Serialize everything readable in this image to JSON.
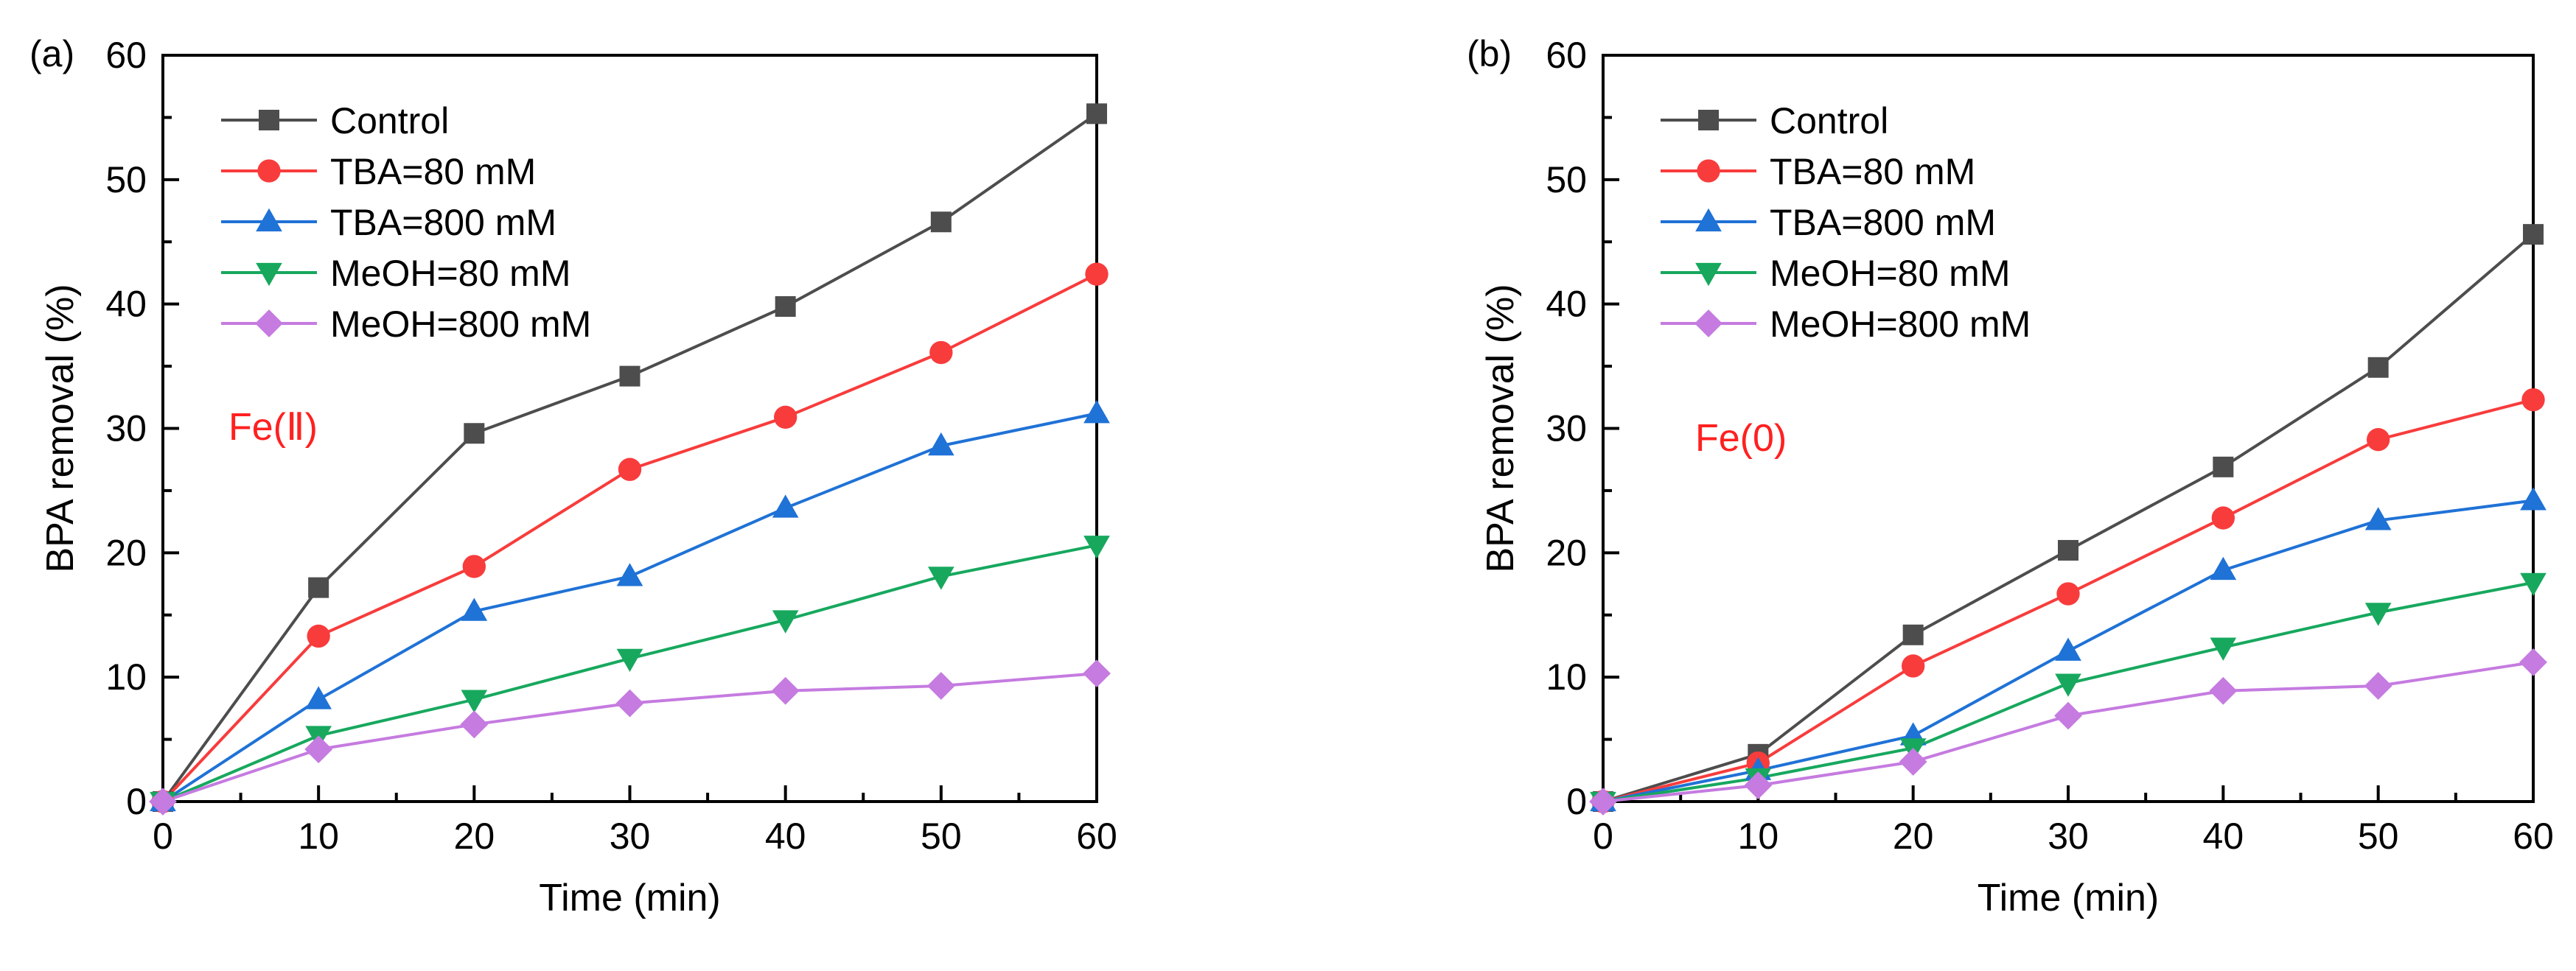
{
  "chart_data": [
    {
      "panel_label": "(a)",
      "type": "line",
      "xlabel": "Time (min)",
      "ylabel": "BPA removal (%)",
      "xlim": [
        0,
        60
      ],
      "ylim": [
        0,
        60
      ],
      "xticks": [
        "0",
        "10",
        "20",
        "30",
        "40",
        "50",
        "60"
      ],
      "yticks": [
        "0",
        "10",
        "20",
        "30",
        "40",
        "50",
        "60"
      ],
      "annotation": "Fe(Ⅱ)",
      "annotation_color": "#ff2020",
      "legend_position": "top-left",
      "x": [
        0,
        10,
        20,
        30,
        40,
        50,
        60
      ],
      "series": [
        {
          "name": "Control",
          "color": "#4d4d4d",
          "marker": "square",
          "values": [
            0,
            17.2,
            29.6,
            34.2,
            39.8,
            46.6,
            55.3
          ]
        },
        {
          "name": "TBA=80 mM",
          "color": "#f83c3c",
          "marker": "circle",
          "values": [
            0,
            13.3,
            18.9,
            26.7,
            30.9,
            36.1,
            42.4
          ]
        },
        {
          "name": "TBA=800 mM",
          "color": "#1f72d6",
          "marker": "triangle-up",
          "values": [
            0,
            8.2,
            15.3,
            18.1,
            23.6,
            28.6,
            31.2
          ]
        },
        {
          "name": "MeOH=80 mM",
          "color": "#17a85e",
          "marker": "triangle-down",
          "values": [
            0,
            5.3,
            8.2,
            11.5,
            14.6,
            18.1,
            20.6
          ]
        },
        {
          "name": "MeOH=800 mM",
          "color": "#c57be0",
          "marker": "diamond",
          "values": [
            0,
            4.2,
            6.2,
            7.9,
            8.9,
            9.3,
            10.3
          ]
        }
      ]
    },
    {
      "panel_label": "(b)",
      "type": "line",
      "xlabel": "Time (min)",
      "ylabel": "BPA removal (%)",
      "xlim": [
        0,
        60
      ],
      "ylim": [
        0,
        60
      ],
      "xticks": [
        "0",
        "10",
        "20",
        "30",
        "40",
        "50",
        "60"
      ],
      "yticks": [
        "0",
        "10",
        "20",
        "30",
        "40",
        "50",
        "60"
      ],
      "annotation": "Fe(0)",
      "annotation_color": "#ff2020",
      "legend_position": "top-left",
      "x": [
        0,
        10,
        20,
        30,
        40,
        50,
        60
      ],
      "series": [
        {
          "name": "Control",
          "color": "#4d4d4d",
          "marker": "square",
          "values": [
            0,
            3.8,
            13.4,
            20.2,
            26.9,
            34.9,
            45.6
          ]
        },
        {
          "name": "TBA=80 mM",
          "color": "#f83c3c",
          "marker": "circle",
          "values": [
            0,
            3.1,
            10.9,
            16.7,
            22.8,
            29.1,
            32.3
          ]
        },
        {
          "name": "TBA=800 mM",
          "color": "#1f72d6",
          "marker": "triangle-up",
          "values": [
            0,
            2.5,
            5.3,
            12.1,
            18.6,
            22.6,
            24.2
          ]
        },
        {
          "name": "MeOH=80 mM",
          "color": "#17a85e",
          "marker": "triangle-down",
          "values": [
            0,
            1.9,
            4.3,
            9.5,
            12.4,
            15.2,
            17.6
          ]
        },
        {
          "name": "MeOH=800 mM",
          "color": "#c57be0",
          "marker": "diamond",
          "values": [
            0,
            1.3,
            3.2,
            6.9,
            8.9,
            9.3,
            11.2
          ]
        }
      ]
    }
  ]
}
